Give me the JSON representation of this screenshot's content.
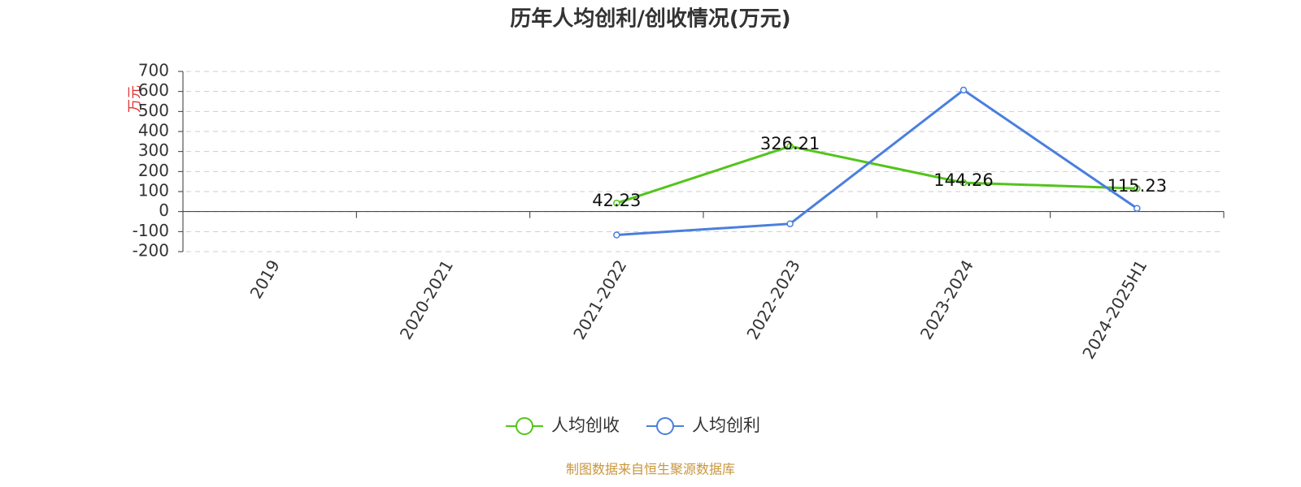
{
  "chart_data": {
    "type": "line",
    "title": "历年人均创利/创收情况(万元)",
    "y_label": "万元",
    "source": "制图数据来自恒生聚源数据库",
    "categories": [
      "2019",
      "2020-2021",
      "2021-2022",
      "2022-2023",
      "2023-2024",
      "2024-2025H1"
    ],
    "series": [
      {
        "name": "人均创收",
        "color": "#52c41a",
        "values": [
          null,
          null,
          42.23,
          326.21,
          144.26,
          115.23
        ],
        "show_labels": true
      },
      {
        "name": "人均创利",
        "color": "#4a7fdc",
        "values": [
          null,
          null,
          -117,
          -61,
          607,
          16
        ],
        "show_labels": false
      }
    ],
    "ylim": [
      -200,
      700
    ],
    "yticks": [
      -200,
      -100,
      0,
      100,
      200,
      300,
      400,
      500,
      600,
      700
    ],
    "grid": true
  }
}
